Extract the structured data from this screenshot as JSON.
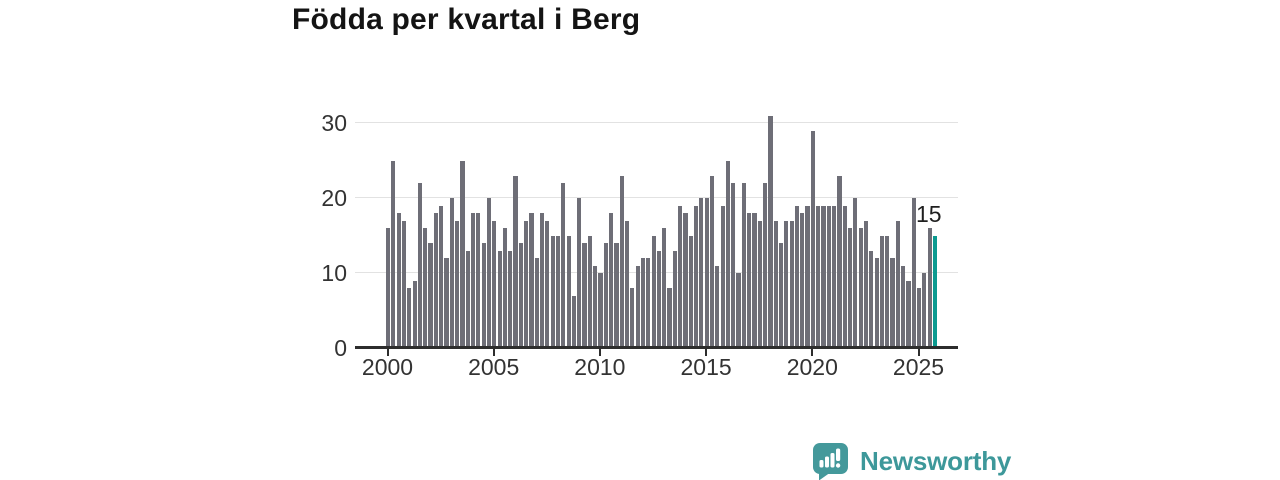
{
  "title": "Födda per kvartal i Berg",
  "chart_data": {
    "type": "bar",
    "title": "Födda per kvartal i Berg",
    "x_start_year": 2000,
    "quarters_per_year": 4,
    "values": [
      16,
      25,
      18,
      17,
      8,
      9,
      22,
      16,
      14,
      18,
      19,
      12,
      20,
      17,
      25,
      13,
      18,
      18,
      14,
      20,
      17,
      13,
      16,
      13,
      23,
      14,
      17,
      18,
      12,
      18,
      17,
      15,
      15,
      22,
      15,
      7,
      20,
      14,
      15,
      11,
      10,
      14,
      18,
      14,
      23,
      17,
      8,
      11,
      12,
      12,
      15,
      13,
      16,
      8,
      13,
      19,
      18,
      15,
      19,
      20,
      20,
      23,
      11,
      19,
      25,
      22,
      10,
      22,
      18,
      18,
      17,
      22,
      31,
      17,
      14,
      17,
      17,
      19,
      18,
      19,
      29,
      19,
      19,
      19,
      19,
      23,
      19,
      16,
      20,
      16,
      17,
      13,
      12,
      15,
      15,
      12,
      17,
      11,
      9,
      20,
      8,
      10,
      16,
      15
    ],
    "highlight_index": 103,
    "annotation": {
      "text": "15"
    },
    "y_ticks": [
      {
        "label": "0",
        "value": 0
      },
      {
        "label": "10",
        "value": 10
      },
      {
        "label": "20",
        "value": 20
      },
      {
        "label": "30",
        "value": 30
      }
    ],
    "x_ticks": [
      {
        "label": "2000",
        "quarter_offset": 0
      },
      {
        "label": "2005",
        "quarter_offset": 20
      },
      {
        "label": "2010",
        "quarter_offset": 40
      },
      {
        "label": "2015",
        "quarter_offset": 60
      },
      {
        "label": "2020",
        "quarter_offset": 80
      },
      {
        "label": "2025",
        "quarter_offset": 100
      }
    ],
    "ylim": [
      0,
      32
    ],
    "grid": "horizontal",
    "bar_color": "#6e6e77",
    "highlight_color": "#0c9a90",
    "axis_color": "#2d2d2d",
    "gridline_color": "#e2e2e2",
    "label_color": "#333333"
  },
  "footer": {
    "brand": "Newsworthy",
    "brand_color": "#3d989a"
  }
}
